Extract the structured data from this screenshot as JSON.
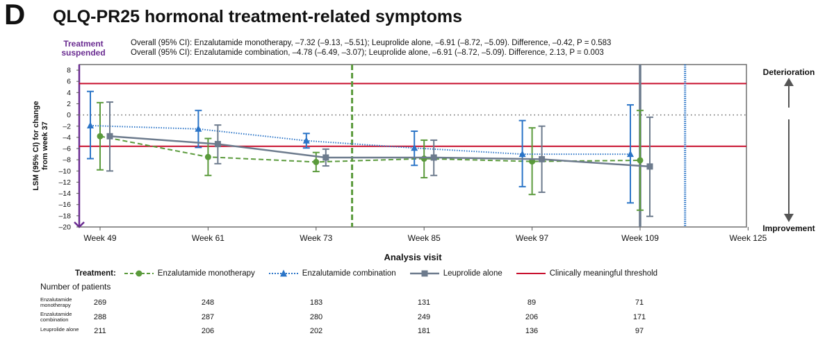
{
  "panel_letter": "D",
  "title": "QLQ-PR25 hormonal treatment-related symptoms",
  "treatment_suspended": "Treatment suspended",
  "overall_lines": [
    "Overall (95% CI): Enzalutamide monotherapy, –7.32 (–9.13, –5.51); Leuprolide alone, –6.91 (–8.72, –5.09). Difference, –0.42, P = 0.583",
    "Overall (95% CI): Enzalutamide combination, –4.78 (–6.49, –3.07); Leuprolide alone, –6.91 (–8.72, –5.09). Difference, 2.13, P = 0.003"
  ],
  "side_labels": {
    "top": "Deterioration",
    "bottom": "Improvement"
  },
  "legend": {
    "title": "Treatment:",
    "items": [
      "Enzalutamide monotherapy",
      "Enzalutamide combination",
      "Leuprolide alone",
      "Clinically meaningful threshold"
    ]
  },
  "patients": {
    "title": "Number of patients",
    "rows": [
      {
        "label": "Enzalutamide monotherapy",
        "values": [
          "269",
          "248",
          "183",
          "131",
          "89",
          "71"
        ]
      },
      {
        "label": "Enzalutamide combination",
        "values": [
          "288",
          "287",
          "280",
          "249",
          "206",
          "171"
        ]
      },
      {
        "label": "Leuprolide alone",
        "values": [
          "211",
          "206",
          "202",
          "181",
          "136",
          "97"
        ]
      }
    ]
  },
  "chart_data": {
    "type": "line",
    "xlabel": "Analysis visit",
    "ylabel": "LSM (95% CI) for change from week 37",
    "categories": [
      "Week 49",
      "Week 61",
      "Week 73",
      "Week 85",
      "Week 97",
      "Week 109",
      "Week 125"
    ],
    "y_ticks": [
      "8",
      "6",
      "4",
      "2",
      "0",
      "–2",
      "–4",
      "–6",
      "–8",
      "–10",
      "–12",
      "–14",
      "–16",
      "–18",
      "–20"
    ],
    "ylim": [
      -20,
      9
    ],
    "threshold_lines": [
      5.6,
      -5.6
    ],
    "threshold_color": "#c8102e",
    "zero_line": 0,
    "vertical_markers": [
      {
        "x_week": 77,
        "color": "#5a9a3b",
        "style": "dashed"
      },
      {
        "x_week": 109,
        "color": "#6d7b8d",
        "style": "solid"
      },
      {
        "x_week": 114,
        "color": "#2a74c7",
        "style": "dotted"
      }
    ],
    "series": [
      {
        "name": "Enzalutamide monotherapy",
        "color": "#5a9a3b",
        "marker": "circle",
        "line_style": "dashed",
        "points": [
          {
            "x_week": 49,
            "y": -3.8,
            "lo": -9.8,
            "hi": 2.2
          },
          {
            "x_week": 61,
            "y": -7.5,
            "lo": -10.8,
            "hi": -4.2
          },
          {
            "x_week": 73,
            "y": -8.4,
            "lo": -10.1,
            "hi": -6.7
          },
          {
            "x_week": 85,
            "y": -7.8,
            "lo": -11.2,
            "hi": -4.5
          },
          {
            "x_week": 97,
            "y": -8.3,
            "lo": -14.2,
            "hi": -2.3
          },
          {
            "x_week": 109,
            "y": -8.1,
            "lo": -17.0,
            "hi": 0.8
          }
        ]
      },
      {
        "name": "Enzalutamide combination",
        "color": "#2a74c7",
        "marker": "triangle",
        "line_style": "dotted",
        "points": [
          {
            "x_week": 49,
            "y": -1.9,
            "lo": -7.8,
            "hi": 4.2
          },
          {
            "x_week": 61,
            "y": -2.5,
            "lo": -5.8,
            "hi": 0.8
          },
          {
            "x_week": 73,
            "y": -4.6,
            "lo": -5.9,
            "hi": -3.3
          },
          {
            "x_week": 85,
            "y": -5.9,
            "lo": -9.0,
            "hi": -2.9
          },
          {
            "x_week": 97,
            "y": -7.0,
            "lo": -12.8,
            "hi": -1.0
          },
          {
            "x_week": 109,
            "y": -7.0,
            "lo": -15.7,
            "hi": 1.8
          }
        ]
      },
      {
        "name": "Leuprolide alone",
        "color": "#6d7b8d",
        "marker": "square",
        "line_style": "solid",
        "points": [
          {
            "x_week": 49,
            "y": -3.8,
            "lo": -10.0,
            "hi": 2.3
          },
          {
            "x_week": 61,
            "y": -5.2,
            "lo": -8.7,
            "hi": -1.8
          },
          {
            "x_week": 73,
            "y": -7.6,
            "lo": -9.1,
            "hi": -6.1
          },
          {
            "x_week": 85,
            "y": -7.6,
            "lo": -10.8,
            "hi": -4.5
          },
          {
            "x_week": 97,
            "y": -7.9,
            "lo": -13.8,
            "hi": -2.0
          },
          {
            "x_week": 109,
            "y": -9.2,
            "lo": -18.1,
            "hi": -0.4
          }
        ]
      }
    ]
  }
}
